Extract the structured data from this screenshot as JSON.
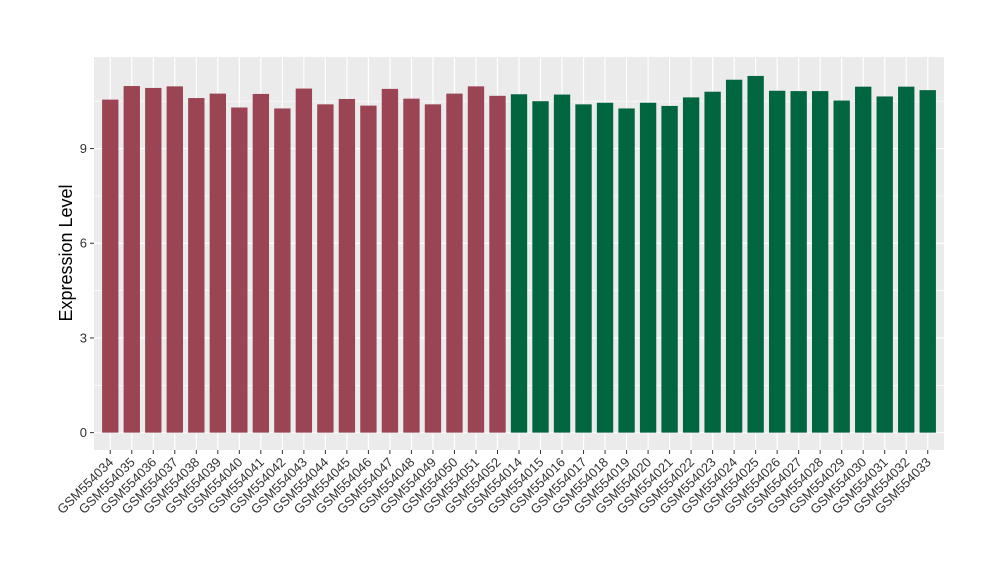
{
  "chart_data": {
    "type": "bar",
    "title": "",
    "xlabel": "",
    "ylabel": "Expression Level",
    "ylim": [
      -0.55,
      11.9
    ],
    "yticks": [
      0,
      3,
      6,
      9
    ],
    "grid": true,
    "panel_background": "#EBEBEB",
    "categories": [
      "GSM554034",
      "GSM554035",
      "GSM554036",
      "GSM554037",
      "GSM554038",
      "GSM554039",
      "GSM554040",
      "GSM554041",
      "GSM554042",
      "GSM554043",
      "GSM554044",
      "GSM554045",
      "GSM554046",
      "GSM554047",
      "GSM554048",
      "GSM554049",
      "GSM554050",
      "GSM554051",
      "GSM554052",
      "GSM554014",
      "GSM554015",
      "GSM554016",
      "GSM554017",
      "GSM554018",
      "GSM554019",
      "GSM554020",
      "GSM554021",
      "GSM554022",
      "GSM554023",
      "GSM554024",
      "GSM554025",
      "GSM554026",
      "GSM554027",
      "GSM554028",
      "GSM554029",
      "GSM554030",
      "GSM554031",
      "GSM554032",
      "GSM554033"
    ],
    "values": [
      10.55,
      10.98,
      10.92,
      10.97,
      10.6,
      10.74,
      10.3,
      10.73,
      10.27,
      10.9,
      10.4,
      10.57,
      10.36,
      10.89,
      10.58,
      10.4,
      10.74,
      10.97,
      10.67,
      10.72,
      10.5,
      10.71,
      10.4,
      10.45,
      10.27,
      10.45,
      10.35,
      10.62,
      10.8,
      11.18,
      11.3,
      10.83,
      10.82,
      10.82,
      10.52,
      10.96,
      10.65,
      10.96,
      10.85
    ],
    "colors": [
      "#9B4453",
      "#9B4453",
      "#9B4453",
      "#9B4453",
      "#9B4453",
      "#9B4453",
      "#9B4453",
      "#9B4453",
      "#9B4453",
      "#9B4453",
      "#9B4453",
      "#9B4453",
      "#9B4453",
      "#9B4453",
      "#9B4453",
      "#9B4453",
      "#9B4453",
      "#9B4453",
      "#9B4453",
      "#006640",
      "#006640",
      "#006640",
      "#006640",
      "#006640",
      "#006640",
      "#006640",
      "#006640",
      "#006640",
      "#006640",
      "#006640",
      "#006640",
      "#006640",
      "#006640",
      "#006640",
      "#006640",
      "#006640",
      "#006640",
      "#006640",
      "#006640"
    ]
  }
}
